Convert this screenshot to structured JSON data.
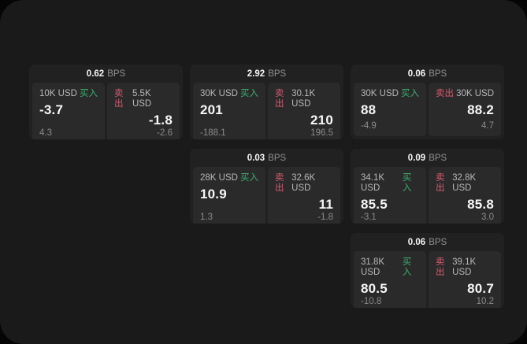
{
  "labels": {
    "bps_unit": "BPS",
    "buy": "买入",
    "sell": "卖出"
  },
  "colors": {
    "buy_green": "#3cb06c",
    "sell_red": "#d95a6e",
    "panel_bg": "#1a1a1b",
    "card_bg": "#212122",
    "tile_bg": "#2a2a2b"
  },
  "cards": [
    {
      "bps": "0.62",
      "buy": {
        "notional": "10K USD",
        "price": "-3.7",
        "delta": "4.3"
      },
      "sell": {
        "notional": "5.5K USD",
        "price": "-1.8",
        "delta": "-2.6"
      }
    },
    {
      "bps": "2.92",
      "buy": {
        "notional": "30K USD",
        "price": "201",
        "delta": "-188.1"
      },
      "sell": {
        "notional": "30.1K USD",
        "price": "210",
        "delta": "196.5"
      }
    },
    {
      "bps": "0.06",
      "buy": {
        "notional": "30K USD",
        "price": "88",
        "delta": "-4.9"
      },
      "sell": {
        "notional": "30K USD",
        "price": "88.2",
        "delta": "4.7"
      }
    },
    {
      "bps": "0.03",
      "buy": {
        "notional": "28K USD",
        "price": "10.9",
        "delta": "1.3"
      },
      "sell": {
        "notional": "32.6K USD",
        "price": "11",
        "delta": "-1.8"
      }
    },
    {
      "bps": "0.09",
      "buy": {
        "notional": "34.1K USD",
        "price": "85.5",
        "delta": "-3.1"
      },
      "sell": {
        "notional": "32.8K USD",
        "price": "85.8",
        "delta": "3.0"
      }
    },
    {
      "bps": "0.06",
      "buy": {
        "notional": "31.8K USD",
        "price": "80.5",
        "delta": "-10.8"
      },
      "sell": {
        "notional": "39.1K USD",
        "price": "80.7",
        "delta": "10.2"
      }
    }
  ]
}
